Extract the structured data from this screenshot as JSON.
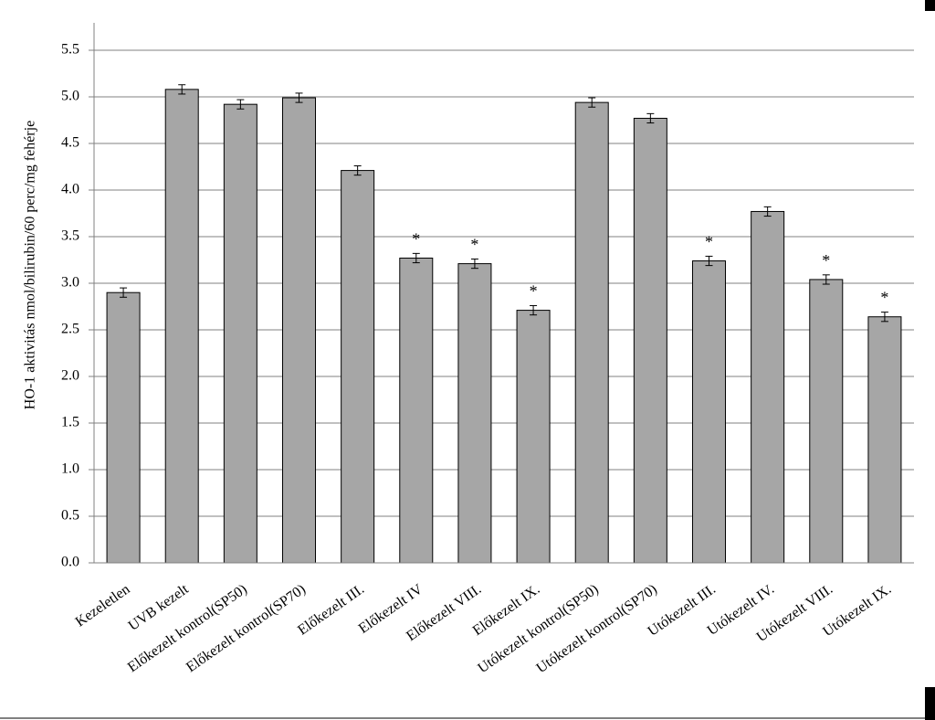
{
  "chart_data": {
    "type": "bar",
    "y_label": "HO-1 aktivitás nmol/bilirubin/60 perc/mg fehérje",
    "categories": [
      "Kezeletlen",
      "UVB kezelt",
      "Előkezelt kontrol(SP50)",
      "Előkezelt kontrol(SP70)",
      "Előkezelt III.",
      "Előkezelt IV",
      "Előkezelt VIII.",
      "Előkezelt IX.",
      "Utókezelt kontrol(SP50)",
      "Utókezelt kontrol(SP70)",
      "Utókezelt III.",
      "Utókezelt IV.",
      "Utókezelt VIII.",
      "Utókezelt IX."
    ],
    "values": [
      2.9,
      5.08,
      4.92,
      4.99,
      4.21,
      3.27,
      3.21,
      2.71,
      4.94,
      4.77,
      3.24,
      3.77,
      3.04,
      2.64
    ],
    "errors": [
      0.05,
      0.05,
      0.05,
      0.05,
      0.05,
      0.05,
      0.05,
      0.05,
      0.05,
      0.05,
      0.05,
      0.05,
      0.05,
      0.05
    ],
    "markers": [
      null,
      null,
      null,
      null,
      null,
      "*",
      "*",
      "*",
      null,
      null,
      "*",
      null,
      "*",
      "*"
    ],
    "color": "#a6a6a6",
    "ylim": [
      0,
      5.5
    ],
    "yticks": [
      {
        "value": 0,
        "label": "0.0"
      },
      {
        "value": 0.5,
        "label": "0.5"
      },
      {
        "value": 1,
        "label": "1.0"
      },
      {
        "value": 1.5,
        "label": "1.5"
      },
      {
        "value": 2,
        "label": "2.0"
      },
      {
        "value": 2.5,
        "label": "2.5"
      },
      {
        "value": 3,
        "label": "3.0"
      },
      {
        "value": 3.5,
        "label": "3.5"
      },
      {
        "value": 4,
        "label": "4.0"
      },
      {
        "value": 4.5,
        "label": "4.5"
      },
      {
        "value": 5,
        "label": "5.0"
      },
      {
        "value": 5.5,
        "label": "5.5"
      }
    ],
    "grid": true
  }
}
